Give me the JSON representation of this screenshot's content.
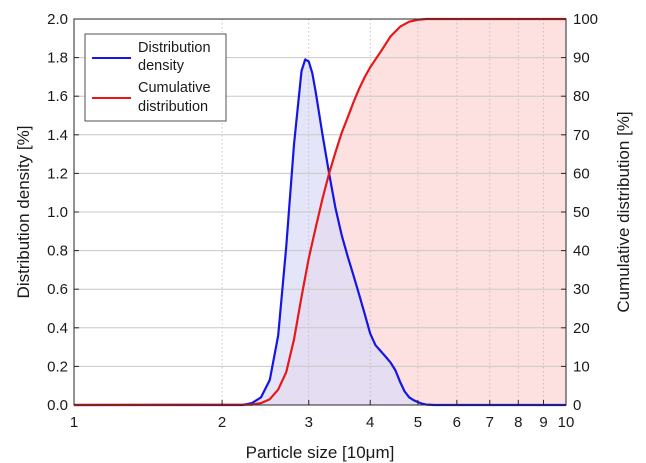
{
  "chart_data": {
    "type": "line",
    "xlabel": "Particle size [10μm]",
    "ylabel": "Distribution density [%]",
    "y2label": "Cumulative distribution [%]",
    "xscale": "log",
    "xlim": [
      1,
      10
    ],
    "ylim": [
      0,
      2.0
    ],
    "y2lim": [
      0,
      100
    ],
    "grid": true,
    "legend_position": "top-left",
    "x_ticks": [
      "1",
      "2",
      "3",
      "4",
      "5",
      "6",
      "7",
      "8",
      "9",
      "10"
    ],
    "y_ticks": [
      "0.0",
      "0.2",
      "0.4",
      "0.6",
      "0.8",
      "1.0",
      "1.2",
      "1.4",
      "1.6",
      "1.8",
      "2.0"
    ],
    "y2_ticks": [
      "0",
      "10",
      "20",
      "30",
      "40",
      "50",
      "60",
      "70",
      "80",
      "90",
      "100"
    ],
    "series": [
      {
        "name": "Distribution density",
        "legend_lines": [
          "Distribution",
          "density"
        ],
        "axis": "left",
        "color": "#1515e6",
        "fill": "#dcdcf8",
        "x": [
          1,
          2.2,
          2.3,
          2.4,
          2.5,
          2.6,
          2.7,
          2.8,
          2.9,
          2.95,
          3.0,
          3.05,
          3.1,
          3.2,
          3.3,
          3.4,
          3.5,
          3.6,
          3.7,
          3.8,
          3.9,
          4.0,
          4.1,
          4.2,
          4.3,
          4.4,
          4.5,
          4.6,
          4.7,
          4.8,
          4.9,
          5.0,
          5.1,
          5.2,
          5.4,
          6,
          7,
          8,
          9,
          10
        ],
        "y": [
          0,
          0,
          0.01,
          0.04,
          0.13,
          0.36,
          0.82,
          1.35,
          1.73,
          1.79,
          1.78,
          1.72,
          1.62,
          1.4,
          1.2,
          1.02,
          0.88,
          0.77,
          0.67,
          0.57,
          0.47,
          0.37,
          0.31,
          0.28,
          0.25,
          0.22,
          0.18,
          0.12,
          0.07,
          0.04,
          0.025,
          0.015,
          0.007,
          0.002,
          0,
          0,
          0,
          0,
          0,
          0
        ]
      },
      {
        "name": "Cumulative distribution",
        "legend_lines": [
          "Cumulative",
          "distribution"
        ],
        "axis": "right",
        "color": "#e81818",
        "fill": "#fde0e0",
        "x": [
          1,
          2.3,
          2.4,
          2.5,
          2.6,
          2.7,
          2.8,
          2.9,
          3.0,
          3.1,
          3.2,
          3.3,
          3.4,
          3.5,
          3.6,
          3.7,
          3.8,
          3.9,
          4.0,
          4.2,
          4.4,
          4.6,
          4.8,
          5.0,
          5.2,
          5.5,
          6,
          7,
          8,
          9,
          10
        ],
        "y": [
          0,
          0.1,
          0.5,
          1.5,
          4,
          8.5,
          17,
          28,
          38,
          46,
          53.5,
          60,
          65.5,
          70.5,
          74.5,
          78.5,
          82,
          85,
          87.5,
          91.5,
          95.5,
          98,
          99.3,
          99.8,
          100,
          100,
          100,
          100,
          100,
          100,
          100
        ]
      }
    ]
  }
}
